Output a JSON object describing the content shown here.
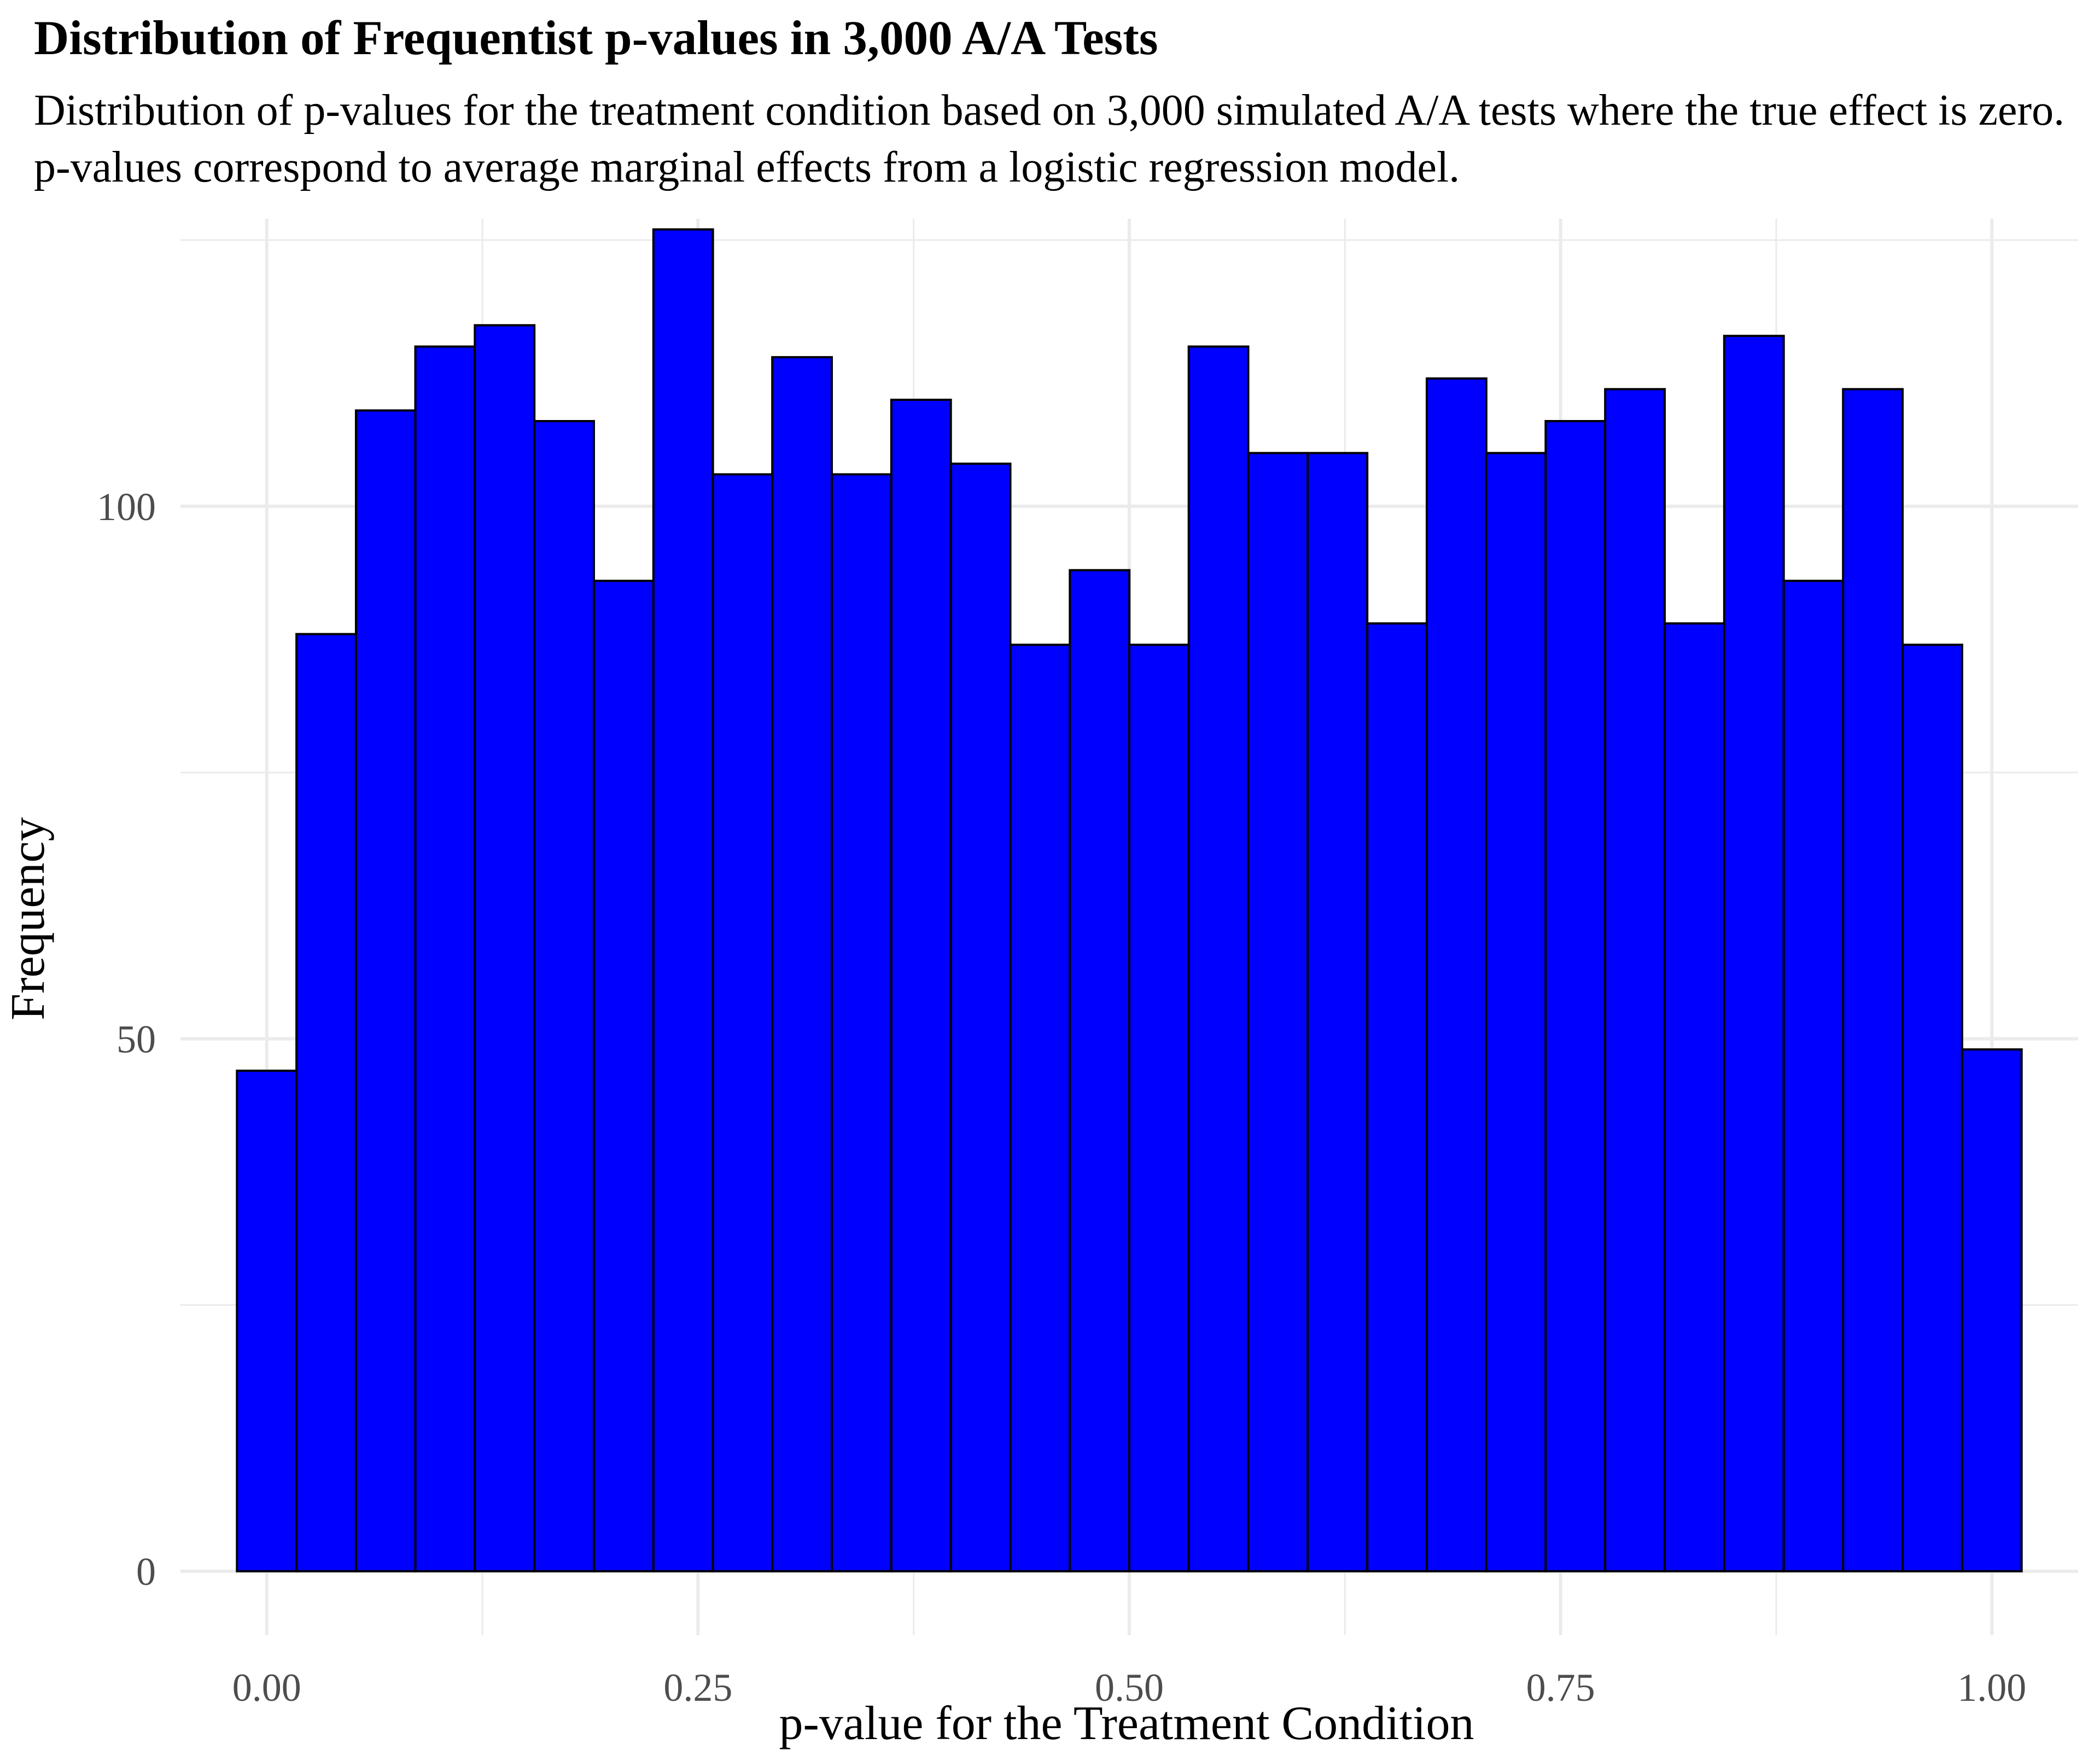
{
  "chart_data": {
    "type": "bar",
    "title": "Distribution of Frequentist p-values in 3,000 A/A Tests",
    "subtitle": "Distribution of p-values for the treatment condition based on 3,000 simulated A/A tests where the true effect is zero. p-values correspond to average marginal effects from a logistic regression model.",
    "xlabel": "p-value for the Treatment Condition",
    "ylabel": "Frequency",
    "xlim": [
      -0.05,
      1.05
    ],
    "ylim": [
      -6,
      127
    ],
    "x_ticks": [
      "0.00",
      "0.25",
      "0.50",
      "0.75",
      "1.00"
    ],
    "x_tick_values": [
      0,
      0.25,
      0.5,
      0.75,
      1.0
    ],
    "y_ticks": [
      "0",
      "50",
      "100"
    ],
    "y_tick_values": [
      0,
      50,
      100
    ],
    "bin_width": 0.0345,
    "bin_centers": [
      0.0,
      0.0345,
      0.069,
      0.1034,
      0.1379,
      0.1724,
      0.2069,
      0.2414,
      0.2759,
      0.3103,
      0.3448,
      0.3793,
      0.4138,
      0.4483,
      0.4828,
      0.5172,
      0.5517,
      0.5862,
      0.6207,
      0.6552,
      0.6897,
      0.7241,
      0.7586,
      0.7931,
      0.8276,
      0.8621,
      0.8966,
      0.931,
      0.9655,
      1.0
    ],
    "values": [
      47,
      88,
      109,
      115,
      117,
      108,
      93,
      126,
      103,
      114,
      103,
      110,
      104,
      87,
      94,
      87,
      115,
      105,
      105,
      89,
      112,
      105,
      108,
      111,
      89,
      116,
      93,
      111,
      87,
      49
    ],
    "bar_fill": "#0000ff",
    "bar_stroke": "#000000",
    "grid": true,
    "grid_color": "#ebebeb"
  }
}
